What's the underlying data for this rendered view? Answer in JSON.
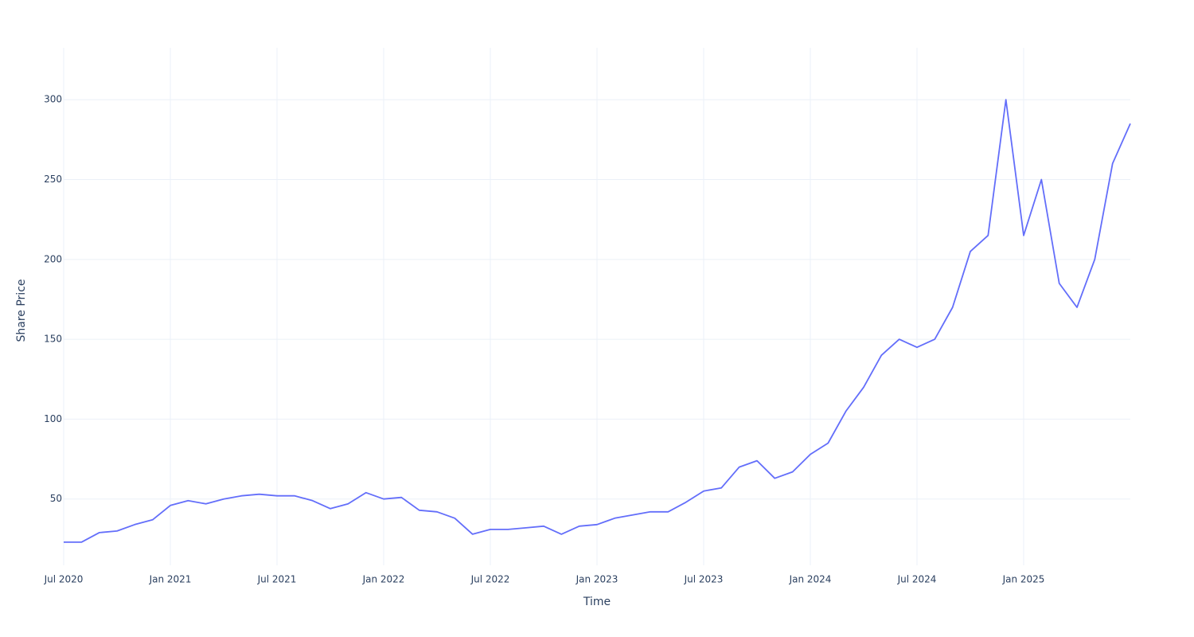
{
  "chart_data": {
    "type": "line",
    "xlabel": "Time",
    "ylabel": "Share Price",
    "x": [
      "2020-07",
      "2020-08",
      "2020-09",
      "2020-10",
      "2020-11",
      "2020-12",
      "2021-01",
      "2021-02",
      "2021-03",
      "2021-04",
      "2021-05",
      "2021-06",
      "2021-07",
      "2021-08",
      "2021-09",
      "2021-10",
      "2021-11",
      "2021-12",
      "2022-01",
      "2022-02",
      "2022-03",
      "2022-04",
      "2022-05",
      "2022-06",
      "2022-07",
      "2022-08",
      "2022-09",
      "2022-10",
      "2022-11",
      "2022-12",
      "2023-01",
      "2023-02",
      "2023-03",
      "2023-04",
      "2023-05",
      "2023-06",
      "2023-07",
      "2023-08",
      "2023-09",
      "2023-10",
      "2023-11",
      "2023-12",
      "2024-01",
      "2024-02",
      "2024-03",
      "2024-04",
      "2024-05",
      "2024-06",
      "2024-07",
      "2024-08",
      "2024-09",
      "2024-10",
      "2024-11",
      "2024-12",
      "2025-01",
      "2025-02",
      "2025-03",
      "2025-04",
      "2025-05",
      "2025-06",
      "2025-07"
    ],
    "series": [
      {
        "color": "#636efa",
        "values": [
          23,
          23,
          29,
          30,
          34,
          37,
          46,
          49,
          47,
          50,
          52,
          53,
          52,
          52,
          49,
          44,
          47,
          54,
          50,
          51,
          43,
          42,
          38,
          28,
          31,
          31,
          32,
          33,
          28,
          33,
          34,
          38,
          40,
          42,
          42,
          48,
          55,
          57,
          70,
          74,
          63,
          67,
          78,
          85,
          105,
          120,
          140,
          150,
          145,
          150,
          170,
          205,
          215,
          300,
          215,
          250,
          185,
          170,
          200,
          260,
          285
        ]
      }
    ],
    "xlim": [
      "2020-07",
      "2025-07"
    ],
    "xticks": [
      {
        "value": "2020-07",
        "label": "Jul 2020"
      },
      {
        "value": "2021-01",
        "label": "Jan 2021"
      },
      {
        "value": "2021-07",
        "label": "Jul 2021"
      },
      {
        "value": "2022-01",
        "label": "Jan 2022"
      },
      {
        "value": "2022-07",
        "label": "Jul 2022"
      },
      {
        "value": "2023-01",
        "label": "Jan 2023"
      },
      {
        "value": "2023-07",
        "label": "Jul 2023"
      },
      {
        "value": "2024-01",
        "label": "Jan 2024"
      },
      {
        "value": "2024-07",
        "label": "Jul 2024"
      },
      {
        "value": "2025-01",
        "label": "Jan 2025"
      }
    ],
    "ylim": [
      8.5,
      332.5
    ],
    "yticks": [
      50,
      100,
      150,
      200,
      250,
      300
    ],
    "grid": true
  }
}
